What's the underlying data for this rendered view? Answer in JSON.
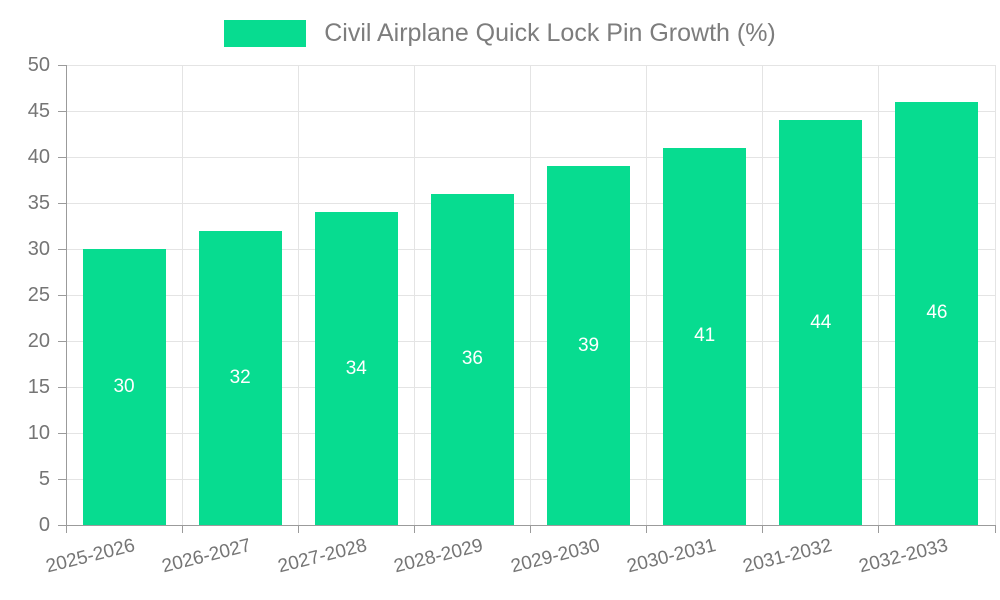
{
  "chart_data": {
    "type": "bar",
    "title": "Civil Airplane Quick Lock Pin Growth (%)",
    "categories": [
      "2025-2026",
      "2026-2027",
      "2027-2028",
      "2028-2029",
      "2029-2030",
      "2030-2031",
      "2031-2032",
      "2032-2033"
    ],
    "series": [
      {
        "name": "Civil Airplane Quick Lock Pin Growth (%)",
        "values": [
          30,
          32,
          34,
          36,
          39,
          41,
          44,
          46
        ]
      }
    ],
    "value_labels_shown": [
      30,
      32,
      34,
      36,
      39,
      41,
      44,
      46
    ],
    "xlabel": "",
    "ylabel": "",
    "ylim": [
      0,
      50
    ],
    "y_tick_step": 5,
    "legend_position": "top",
    "grid": true,
    "colors": {
      "bar": "#07DC90",
      "value_label": "#FFFFFF",
      "grid_line": "#E4E4E4",
      "axis_line": "#9B9B9B",
      "tick_label": "#757575",
      "title_text": "#7D7D7D",
      "background": "#FFFFFF"
    }
  }
}
